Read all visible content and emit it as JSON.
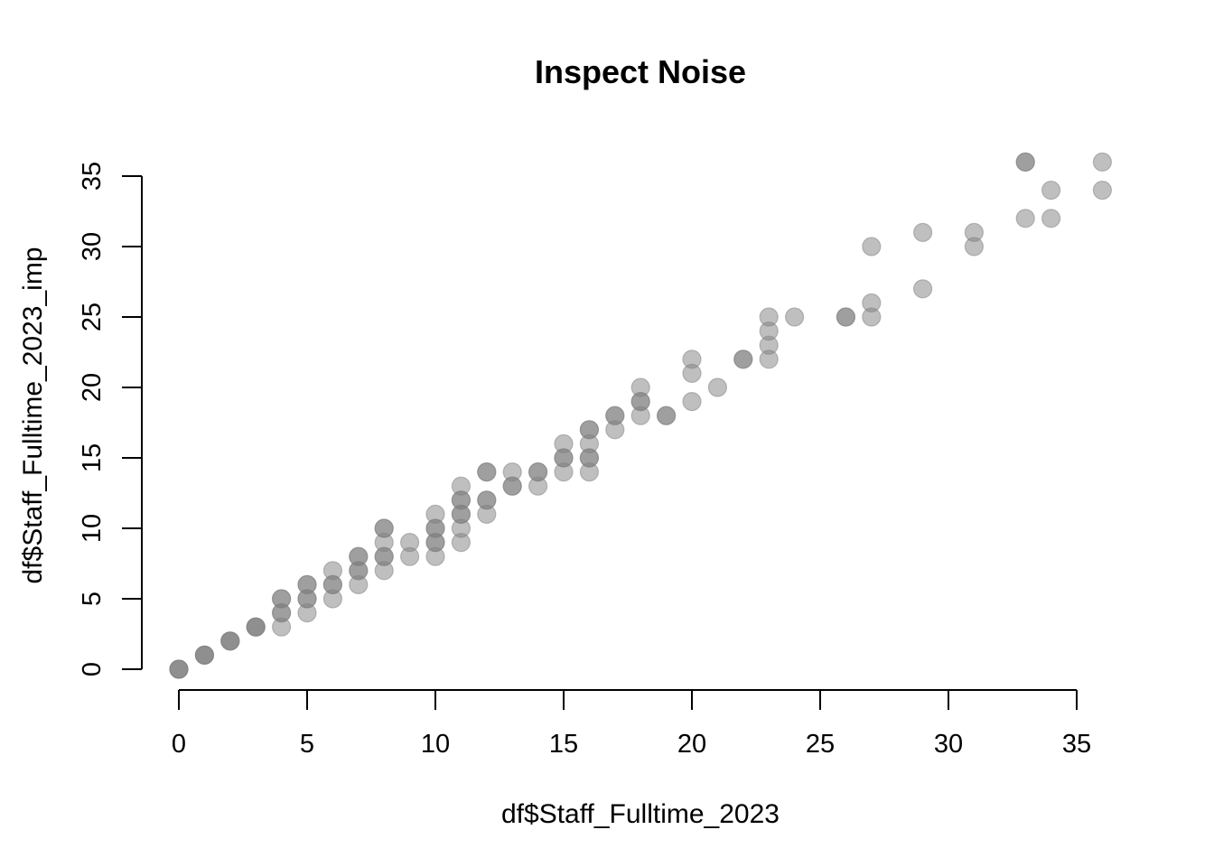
{
  "chart_data": {
    "type": "scatter",
    "title": "Inspect Noise",
    "xlabel": "df$Staff_Fulltime_2023",
    "ylabel": "df$Staff_Fulltime_2023_imp",
    "xlim": [
      0,
      36
    ],
    "ylim": [
      0,
      36
    ],
    "x_ticks": [
      0,
      5,
      10,
      15,
      20,
      25,
      30,
      35
    ],
    "y_ticks": [
      0,
      5,
      10,
      15,
      20,
      25,
      30,
      35
    ],
    "x_tick_labels": [
      "0",
      "5",
      "10",
      "15",
      "20",
      "25",
      "30",
      "35"
    ],
    "y_tick_labels": [
      "0",
      "5",
      "10",
      "15",
      "20",
      "25",
      "30",
      "35"
    ],
    "grid": false,
    "point_color": "#7f7f7f",
    "point_alpha": 0.5,
    "points": [
      [
        0,
        0
      ],
      [
        0,
        0
      ],
      [
        0,
        0
      ],
      [
        1,
        1
      ],
      [
        1,
        1
      ],
      [
        1,
        1
      ],
      [
        2,
        2
      ],
      [
        2,
        2
      ],
      [
        2,
        2
      ],
      [
        3,
        3
      ],
      [
        3,
        3
      ],
      [
        3,
        3
      ],
      [
        4,
        3
      ],
      [
        4,
        4
      ],
      [
        4,
        4
      ],
      [
        4,
        5
      ],
      [
        4,
        5
      ],
      [
        5,
        4
      ],
      [
        5,
        5
      ],
      [
        5,
        5
      ],
      [
        5,
        6
      ],
      [
        5,
        6
      ],
      [
        6,
        5
      ],
      [
        6,
        6
      ],
      [
        6,
        6
      ],
      [
        6,
        7
      ],
      [
        7,
        6
      ],
      [
        7,
        7
      ],
      [
        7,
        7
      ],
      [
        7,
        8
      ],
      [
        7,
        8
      ],
      [
        8,
        7
      ],
      [
        8,
        8
      ],
      [
        8,
        8
      ],
      [
        8,
        9
      ],
      [
        8,
        10
      ],
      [
        8,
        10
      ],
      [
        9,
        8
      ],
      [
        9,
        9
      ],
      [
        10,
        8
      ],
      [
        10,
        9
      ],
      [
        10,
        9
      ],
      [
        10,
        10
      ],
      [
        10,
        10
      ],
      [
        10,
        11
      ],
      [
        11,
        9
      ],
      [
        11,
        10
      ],
      [
        11,
        11
      ],
      [
        11,
        11
      ],
      [
        11,
        12
      ],
      [
        11,
        12
      ],
      [
        11,
        13
      ],
      [
        12,
        11
      ],
      [
        12,
        12
      ],
      [
        12,
        12
      ],
      [
        12,
        14
      ],
      [
        12,
        14
      ],
      [
        13,
        13
      ],
      [
        13,
        13
      ],
      [
        13,
        14
      ],
      [
        14,
        13
      ],
      [
        14,
        14
      ],
      [
        14,
        14
      ],
      [
        15,
        14
      ],
      [
        15,
        15
      ],
      [
        15,
        15
      ],
      [
        15,
        16
      ],
      [
        16,
        14
      ],
      [
        16,
        15
      ],
      [
        16,
        15
      ],
      [
        16,
        16
      ],
      [
        16,
        17
      ],
      [
        16,
        17
      ],
      [
        17,
        17
      ],
      [
        17,
        18
      ],
      [
        17,
        18
      ],
      [
        18,
        18
      ],
      [
        18,
        19
      ],
      [
        18,
        19
      ],
      [
        18,
        20
      ],
      [
        19,
        18
      ],
      [
        19,
        18
      ],
      [
        20,
        19
      ],
      [
        20,
        21
      ],
      [
        20,
        22
      ],
      [
        21,
        20
      ],
      [
        22,
        22
      ],
      [
        22,
        22
      ],
      [
        23,
        22
      ],
      [
        23,
        23
      ],
      [
        23,
        24
      ],
      [
        23,
        25
      ],
      [
        24,
        25
      ],
      [
        26,
        25
      ],
      [
        26,
        25
      ],
      [
        27,
        25
      ],
      [
        27,
        26
      ],
      [
        27,
        30
      ],
      [
        29,
        27
      ],
      [
        29,
        31
      ],
      [
        31,
        30
      ],
      [
        31,
        31
      ],
      [
        33,
        32
      ],
      [
        33,
        36
      ],
      [
        33,
        36
      ],
      [
        34,
        32
      ],
      [
        34,
        34
      ],
      [
        36,
        34
      ],
      [
        36,
        36
      ]
    ]
  }
}
